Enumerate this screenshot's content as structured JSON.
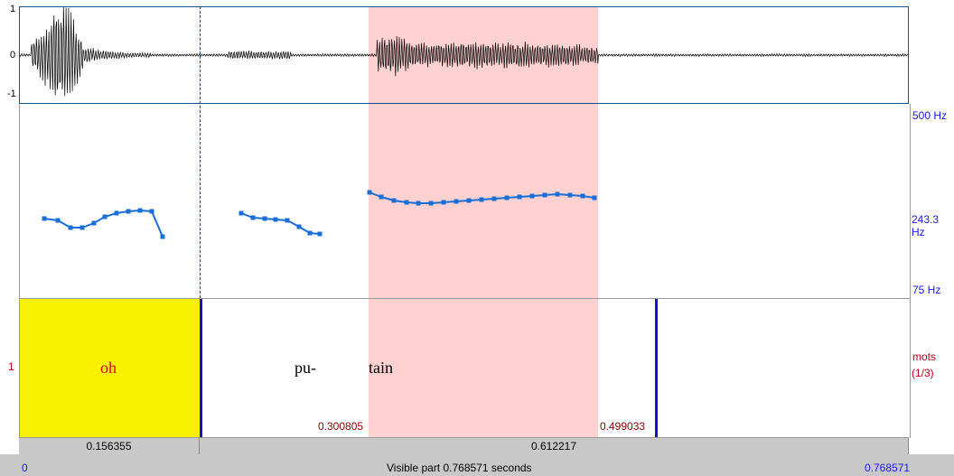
{
  "colors": {
    "selection": "#ffd1d1",
    "interval_highlight": "#f7f000",
    "boundary": "#1010cc",
    "cursor": "#c00000",
    "pitch": "#1a6fd6",
    "waveform": "#000000"
  },
  "waveform": {
    "tick_top": "1",
    "tick_mid": "0",
    "tick_bottom": "-1"
  },
  "pitch_panel": {
    "top_label": "500 Hz",
    "mid_label": "243.3 Hz",
    "bottom_label": "75 Hz"
  },
  "textgrid": {
    "tier_number": "1",
    "tier_name": "mots",
    "tier_count": "(1/3)",
    "words": [
      "oh",
      "pu-",
      "tain"
    ],
    "selection_start": "0.300805",
    "selection_end": "0.499033"
  },
  "durations": {
    "left": "0.156355",
    "right": "0.612217"
  },
  "footer": {
    "start": "0",
    "visible_text": "Visible part 0.768571 seconds",
    "end": "0.768571"
  }
}
